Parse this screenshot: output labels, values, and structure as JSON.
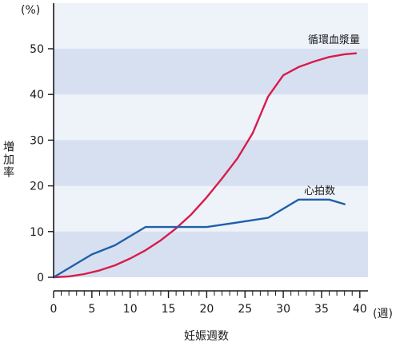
{
  "chart_data": {
    "type": "line",
    "y_unit": "(%)",
    "ylabel": "増加率",
    "xlabel": "妊娠週数",
    "x_unit": "(週)",
    "xlim": [
      0,
      40
    ],
    "ylim": [
      0,
      50
    ],
    "x_ticks": [
      0,
      5,
      10,
      15,
      20,
      25,
      30,
      35,
      40
    ],
    "y_ticks": [
      0,
      10,
      20,
      30,
      40,
      50
    ],
    "x_minor_step": 1,
    "grid": "alternating horizontal bands",
    "colors": {
      "band_light": "#eef2f9",
      "band_dark": "#d7e0f0",
      "axis": "#1a1a1a"
    },
    "series": [
      {
        "name": "循環血漿量",
        "color": "#d81b4b",
        "x": [
          0,
          2,
          4,
          6,
          8,
          10,
          12,
          14,
          16,
          18,
          20,
          22,
          24,
          26,
          28,
          30,
          32,
          34,
          36,
          38,
          39.5
        ],
        "y": [
          0,
          0.2,
          0.7,
          1.5,
          2.6,
          4.1,
          5.9,
          8.1,
          10.7,
          13.8,
          17.5,
          21.6,
          26.0,
          31.5,
          39.5,
          44.2,
          46.0,
          47.2,
          48.2,
          48.8,
          49.0
        ]
      },
      {
        "name": "心拍数",
        "color": "#1f5fa8",
        "x": [
          0,
          5,
          8,
          12,
          16,
          20,
          24,
          28,
          32,
          34,
          36,
          38
        ],
        "y": [
          0,
          5.0,
          7.0,
          11.0,
          11.0,
          11.0,
          12.0,
          13.0,
          17.0,
          17.0,
          17.0,
          16.0
        ]
      }
    ]
  }
}
